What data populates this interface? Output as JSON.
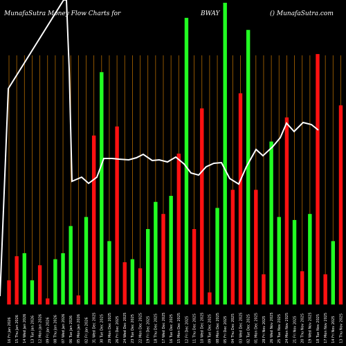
{
  "header": {
    "left": "MunafaSutra  Money Flow  Charts for",
    "ticker": "BWAY",
    "right": "() MunafaSutra.com"
  },
  "colors": {
    "background": "#000000",
    "up": "#22ff22",
    "down": "#ff1111",
    "grid": "#b26a00",
    "line": "#ffffff"
  },
  "chart_data": {
    "type": "bar",
    "title": "",
    "ylim": [
      0,
      100
    ],
    "categories": [
      "16 Fri Jan 2026",
      "15 Thu Jan 2026",
      "14 Wed Jan 2026",
      "13 Tue Jan 2026",
      "12 Mon Jan 2026",
      "09 Fri Jan 2026",
      "08 Thu Jan 2026",
      "07 Wed Jan 2026",
      "06 Tue Jan 2026",
      "05 Mon Jan 2026",
      "02 Fri Jan 2026",
      "31 Wed Dec 2025",
      "30 Tue Dec 2025",
      "29 Mon Dec 2025",
      "26 Fri Dec 2025",
      "24 Wed Dec 2025",
      "23 Tue Dec 2025",
      "22 Mon Dec 2025",
      "19 Fri Dec 2025",
      "18 Thu Dec 2025",
      "17 Wed Dec 2025",
      "16 Tue Dec 2025",
      "15 Mon Dec 2025",
      "12 Fri Dec 2025",
      "11 Thu Dec 2025",
      "10 Wed Dec 2025",
      "09 Tue Dec 2025",
      "08 Mon Dec 2025",
      "05 Fri Dec 2025",
      "04 Thu Dec 2025",
      "03 Wed Dec 2025",
      "02 Tue Dec 2025",
      "01 Mon Dec 2025",
      "28 Fri Nov 2025",
      "26 Wed Nov 2025",
      "25 Tue Nov 2025",
      "24 Mon Nov 2025",
      "21 Fri Nov 2025",
      "20 Thu Nov 2025",
      "19 Wed Nov 2025",
      "18 Tue Nov 2025",
      "17 Mon Nov 2025",
      "14 Fri Nov 2025",
      "13 Thu Nov 2025",
      "12 Wed Nov 2025"
    ],
    "flow": [
      "down",
      "down",
      "up",
      "up",
      "down",
      "down",
      "up",
      "up",
      "up",
      "down",
      "up",
      "down",
      "up",
      "up",
      "down",
      "down",
      "up",
      "down",
      "up",
      "up",
      "down",
      "up",
      "down",
      "up",
      "down",
      "down",
      "down",
      "up",
      "up",
      "down",
      "down",
      "up",
      "down",
      "down",
      "up",
      "up",
      "down",
      "up",
      "down",
      "up",
      "down",
      "down",
      "up",
      "down",
      "down"
    ],
    "values": [
      8,
      16,
      17,
      8,
      13,
      2,
      15,
      17,
      26,
      3,
      29,
      56,
      77,
      21,
      59,
      14,
      15,
      12,
      25,
      34,
      30,
      36,
      50,
      95,
      25,
      65,
      4,
      32,
      100,
      38,
      70,
      91,
      38,
      10,
      54,
      29,
      62,
      28,
      11,
      30,
      83,
      10,
      21,
      66,
      35
    ],
    "line": [
      100,
      100,
      100,
      100,
      100,
      100,
      100,
      100,
      100,
      100,
      100,
      100,
      100,
      100,
      100,
      100,
      100,
      100,
      100,
      100,
      100,
      100,
      100,
      100,
      100,
      100,
      100,
      100,
      100,
      100,
      100,
      100,
      100,
      100,
      100,
      100,
      100,
      100,
      100,
      100,
      100,
      100,
      100,
      100,
      100
    ]
  }
}
